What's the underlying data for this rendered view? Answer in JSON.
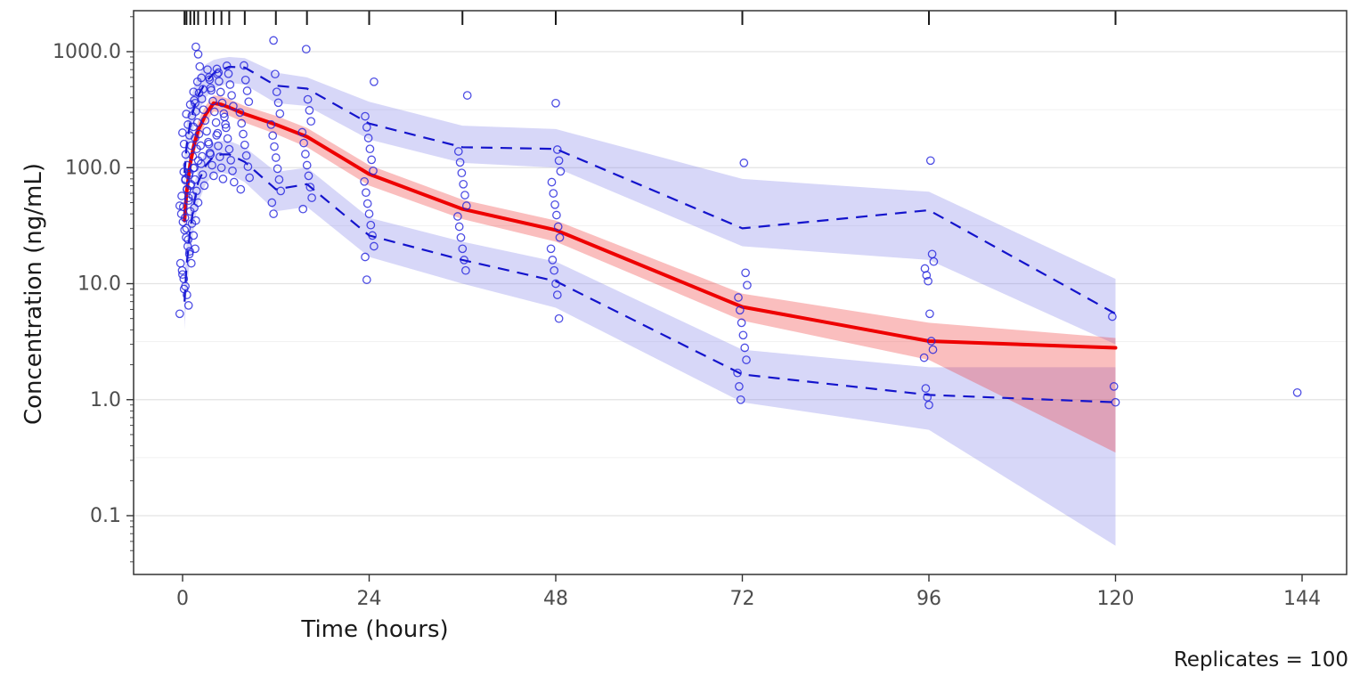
{
  "chart_data": {
    "type": "line",
    "title": "",
    "xlabel": "Time (hours)",
    "ylabel": "Concentration (ng/mL)",
    "caption": "Replicates = 100",
    "x_ticks": [
      0,
      24,
      48,
      72,
      96,
      120,
      144
    ],
    "y_ticks": [
      0.1,
      1.0,
      10.0,
      100.0,
      1000.0
    ],
    "y_tick_labels": [
      "0.1",
      "1.0",
      "10.0",
      "100.0",
      "1000.0"
    ],
    "xlim": [
      -6.3,
      149.7
    ],
    "ylim": [
      0.031,
      2255
    ],
    "y_scale": "log10",
    "grid": "horizontal-major-minor",
    "legend_position": "none",
    "colors": {
      "median_line": "#ee0000",
      "median_band": "rgba(240,40,40,0.30)",
      "percentile_line": "#1414cc",
      "percentile_band": "rgba(110,110,230,0.28)",
      "observation_point": "#2222dd",
      "grid_major": "#e3e3e3",
      "grid_minor": "#f1f1f1",
      "panel_border": "#333333",
      "tick_text": "#4d4d4d"
    },
    "rug_times": [
      0.25,
      0.5,
      1,
      1.5,
      2,
      3,
      4,
      5,
      6,
      8,
      12,
      16,
      24,
      36,
      48,
      72,
      96,
      120
    ],
    "times": [
      0.25,
      0.5,
      1,
      1.5,
      2,
      3,
      4,
      5,
      6,
      8,
      12,
      16,
      24,
      36,
      48,
      72,
      96,
      120
    ],
    "series": [
      {
        "name": "median",
        "style": "solid",
        "values": [
          35,
          60,
          110,
          160,
          210,
          290,
          360,
          350,
          330,
          290,
          235,
          185,
          88,
          44,
          29,
          6.3,
          3.2,
          2.8
        ]
      },
      {
        "name": "p95",
        "style": "dashed",
        "values": [
          90,
          150,
          250,
          330,
          420,
          550,
          650,
          700,
          740,
          730,
          510,
          480,
          240,
          150,
          145,
          30,
          43,
          5.5
        ]
      },
      {
        "name": "p05",
        "style": "dashed",
        "values": [
          7,
          14,
          30,
          50,
          75,
          105,
          125,
          130,
          130,
          112,
          65,
          72,
          26,
          16,
          10.5,
          1.65,
          1.1,
          0.95
        ]
      }
    ],
    "ribbons": [
      {
        "name": "upper-percentile-band",
        "color_key": "percentile_band",
        "lo": [
          60,
          100,
          170,
          230,
          300,
          400,
          480,
          510,
          540,
          520,
          360,
          340,
          175,
          110,
          100,
          21,
          16,
          3.0
        ],
        "hi": [
          140,
          230,
          380,
          500,
          620,
          780,
          850,
          880,
          900,
          880,
          660,
          600,
          370,
          230,
          215,
          80,
          62,
          11
        ]
      },
      {
        "name": "lower-percentile-band",
        "color_key": "percentile_band",
        "lo": [
          4,
          8,
          18,
          32,
          50,
          72,
          88,
          90,
          88,
          75,
          42,
          46,
          17,
          10,
          6.2,
          0.95,
          0.55,
          0.055
        ],
        "hi": [
          11,
          22,
          45,
          72,
          100,
          140,
          165,
          170,
          170,
          150,
          92,
          100,
          37,
          23,
          15.5,
          2.7,
          1.9,
          1.9
        ]
      },
      {
        "name": "median-band",
        "color_key": "median_band",
        "lo": [
          28,
          48,
          90,
          130,
          175,
          245,
          305,
          300,
          280,
          245,
          195,
          150,
          70,
          36,
          23,
          4.8,
          2.2,
          0.35
        ],
        "hi": [
          45,
          75,
          135,
          195,
          255,
          345,
          420,
          410,
          390,
          340,
          280,
          220,
          105,
          53,
          35,
          8.2,
          4.6,
          3.4
        ]
      }
    ],
    "observations": [
      {
        "t": 0.25,
        "values": [
          5.5,
          6.5,
          8,
          9.5,
          11,
          13,
          15,
          18,
          21,
          25,
          29,
          34,
          40,
          47,
          55,
          65,
          78,
          92
        ]
      },
      {
        "t": 0.5,
        "values": [
          9,
          12,
          15,
          19,
          24,
          30,
          37,
          46,
          57,
          70,
          86,
          105,
          130,
          160,
          200
        ]
      },
      {
        "t": 1,
        "values": [
          20,
          26,
          33,
          42,
          52,
          65,
          80,
          100,
          125,
          155,
          190,
          235,
          290,
          360,
          450
        ]
      },
      {
        "t": 1.5,
        "values": [
          35,
          45,
          57,
          72,
          90,
          115,
          145,
          180,
          225,
          280,
          350,
          440,
          550,
          1100
        ]
      },
      {
        "t": 2,
        "values": [
          50,
          63,
          79,
          99,
          125,
          155,
          195,
          245,
          305,
          380,
          475,
          595,
          745,
          950
        ]
      },
      {
        "t": 3,
        "values": [
          70,
          87,
          108,
          134,
          166,
          206,
          255,
          316,
          392,
          486,
          600,
          700
        ]
      },
      {
        "t": 4,
        "values": [
          85,
          105,
          130,
          160,
          198,
          245,
          303,
          375,
          464,
          574,
          660,
          710
        ]
      },
      {
        "t": 5,
        "values": [
          80,
          100,
          124,
          154,
          190,
          236,
          292,
          362,
          448,
          555,
          640
        ]
      },
      {
        "t": 6,
        "values": [
          75,
          94,
          116,
          144,
          178,
          221,
          273,
          339,
          420,
          520,
          645,
          755
        ]
      },
      {
        "t": 8,
        "values": [
          65,
          82,
          102,
          127,
          157,
          195,
          241,
          299,
          370,
          459,
          570,
          760
        ]
      },
      {
        "t": 12,
        "values": [
          40,
          50,
          63,
          79,
          98,
          122,
          152,
          189,
          235,
          292,
          363,
          450,
          640,
          1250
        ]
      },
      {
        "t": 16,
        "values": [
          44,
          55,
          68,
          85,
          105,
          131,
          163,
          202,
          251,
          312,
          388,
          1050
        ]
      },
      {
        "t": 24,
        "values": [
          10.8,
          17,
          21,
          26,
          32,
          40,
          49,
          61,
          76,
          94,
          117,
          145,
          180,
          223,
          277,
          550
        ]
      },
      {
        "t": 36,
        "values": [
          13,
          16,
          20,
          25,
          31,
          38,
          47,
          58,
          72,
          90,
          111,
          138,
          420
        ]
      },
      {
        "t": 48,
        "values": [
          5,
          8,
          10,
          13,
          16,
          20,
          25,
          31,
          39,
          48,
          60,
          75,
          93,
          115,
          143,
          360
        ]
      },
      {
        "t": 72,
        "values": [
          1.0,
          1.3,
          1.7,
          2.2,
          2.8,
          3.6,
          4.6,
          5.9,
          7.6,
          9.7,
          12.4,
          110
        ]
      },
      {
        "t": 96,
        "values": [
          0.9,
          1.05,
          1.25,
          2.3,
          2.7,
          3.2,
          5.5,
          10.5,
          11.8,
          13.5,
          15.5,
          18,
          115
        ]
      },
      {
        "t": 120,
        "values": [
          0.95,
          1.3,
          5.2
        ]
      },
      {
        "t": 144,
        "values": [
          1.15
        ]
      }
    ]
  }
}
